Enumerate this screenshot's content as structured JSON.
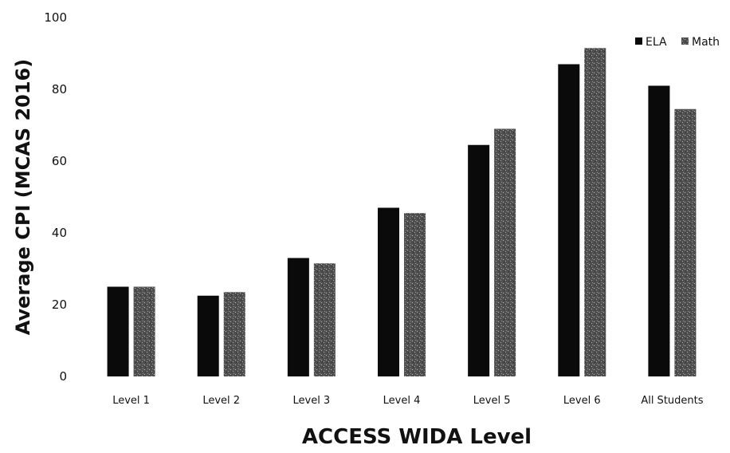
{
  "chart_data": {
    "type": "bar",
    "categories": [
      "Level 1",
      "Level 2",
      "Level 3",
      "Level 4",
      "Level 5",
      "Level 6",
      "All Students"
    ],
    "series": [
      {
        "name": "ELA",
        "values": [
          25,
          22.5,
          33,
          47,
          64.5,
          87,
          81
        ]
      },
      {
        "name": "Math",
        "values": [
          25,
          23.5,
          31.5,
          45.5,
          69,
          91.5,
          74.5
        ]
      }
    ],
    "title": "",
    "xlabel": "ACCESS WIDA Level",
    "ylabel": "Average CPI (MCAS 2016)",
    "ylim": [
      0,
      100
    ],
    "yticks": [
      0,
      20,
      40,
      60,
      80,
      100
    ],
    "grid": false,
    "legend_position": "top-right",
    "colors": {
      "ELA": "#0a0a0a",
      "Math": "#555555"
    }
  }
}
